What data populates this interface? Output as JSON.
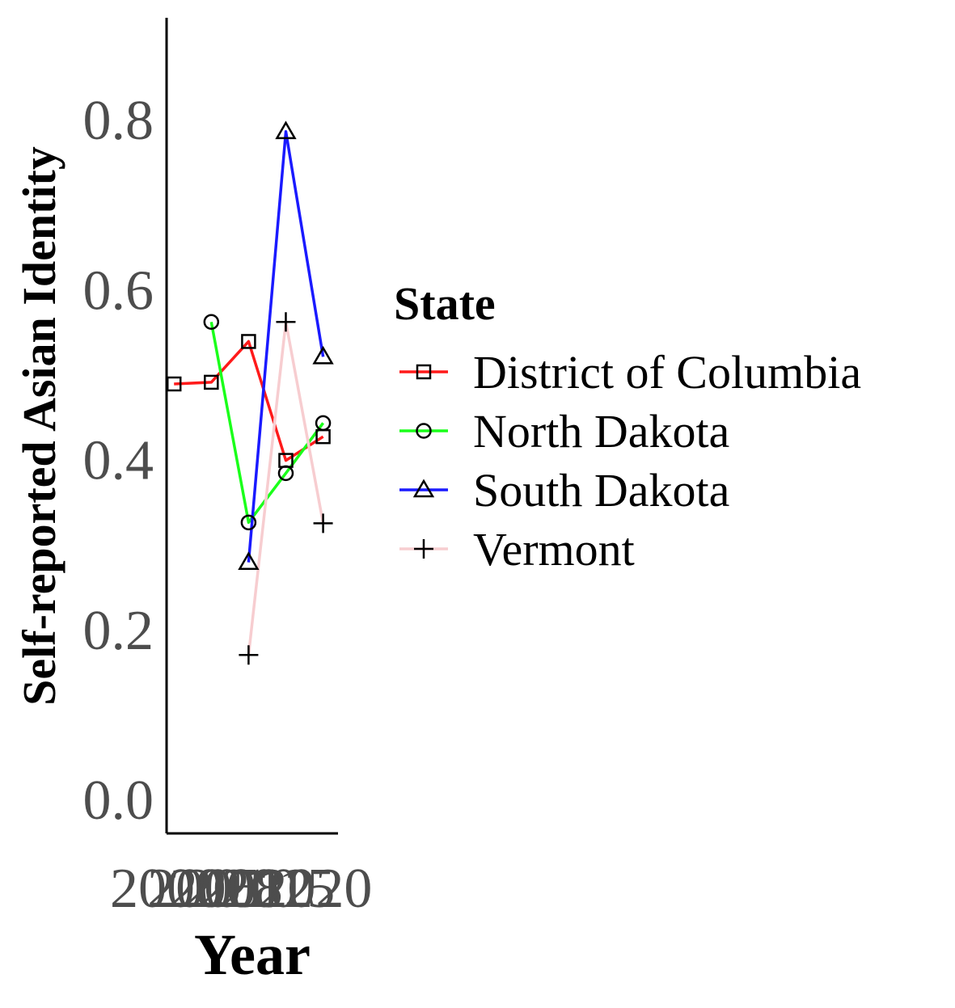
{
  "chart_data": {
    "type": "line",
    "xlabel": "Year",
    "ylabel": "Self-reported Asian Identity",
    "x_ticks": [
      "2000",
      "2005",
      "2008",
      "2010",
      "2012",
      "2015",
      "2020"
    ],
    "y_ticks": [
      "0.0",
      "0.2",
      "0.4",
      "0.6",
      "0.8"
    ],
    "xlim": [
      2000,
      2023
    ],
    "ylim": [
      -0.04,
      0.92
    ],
    "grid": false,
    "legend": {
      "title": "State",
      "placement": "right"
    },
    "series": [
      {
        "name": "District of Columbia",
        "color": "#ff1a1a",
        "marker": "square",
        "points": [
          [
            2001,
            0.489
          ],
          [
            2006,
            0.491
          ],
          [
            2011,
            0.539
          ],
          [
            2016,
            0.399
          ],
          [
            2021,
            0.427
          ]
        ]
      },
      {
        "name": "North Dakota",
        "color": "#1aff1a",
        "marker": "circle",
        "points": [
          [
            2006,
            0.562
          ],
          [
            2011,
            0.326
          ],
          [
            2016,
            0.384
          ],
          [
            2021,
            0.443
          ]
        ]
      },
      {
        "name": "South Dakota",
        "color": "#1a1aff",
        "marker": "triangle",
        "points": [
          [
            2011,
            0.279
          ],
          [
            2016,
            0.786
          ],
          [
            2021,
            0.521
          ]
        ]
      },
      {
        "name": "Vermont",
        "color": "#f7cdd0",
        "marker": "plus",
        "points": [
          [
            2011,
            0.17
          ],
          [
            2016,
            0.562
          ],
          [
            2021,
            0.325
          ]
        ]
      }
    ]
  }
}
